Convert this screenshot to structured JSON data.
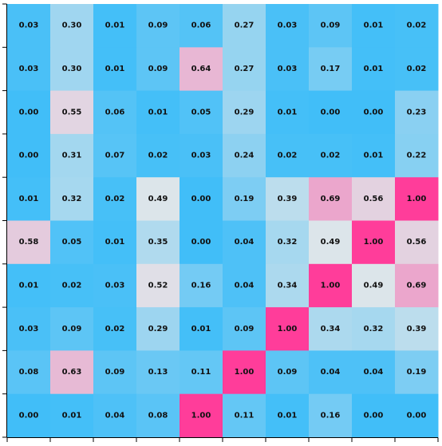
{
  "chart_data": {
    "type": "heatmap",
    "title": "",
    "xlabel": "",
    "ylabel": "",
    "rows": 10,
    "cols": 10,
    "value_range": [
      0,
      1
    ],
    "colormap": {
      "low": "#41bef8",
      "mid": "#dfe6ea",
      "high": "#ff3d9a"
    },
    "values": [
      [
        0.03,
        0.3,
        0.01,
        0.09,
        0.06,
        0.27,
        0.03,
        0.09,
        0.01,
        0.02
      ],
      [
        0.03,
        0.3,
        0.01,
        0.09,
        0.64,
        0.27,
        0.03,
        0.17,
        0.01,
        0.02
      ],
      [
        0.0,
        0.55,
        0.06,
        0.01,
        0.05,
        0.29,
        0.01,
        0.0,
        0.0,
        0.23
      ],
      [
        0.0,
        0.31,
        0.07,
        0.02,
        0.03,
        0.24,
        0.02,
        0.02,
        0.01,
        0.22
      ],
      [
        0.01,
        0.32,
        0.02,
        0.49,
        0.0,
        0.19,
        0.39,
        0.69,
        0.56,
        1.0
      ],
      [
        0.58,
        0.05,
        0.01,
        0.35,
        0.0,
        0.04,
        0.32,
        0.49,
        1.0,
        0.56
      ],
      [
        0.01,
        0.02,
        0.03,
        0.52,
        0.16,
        0.04,
        0.34,
        1.0,
        0.49,
        0.69
      ],
      [
        0.03,
        0.09,
        0.02,
        0.29,
        0.01,
        0.09,
        1.0,
        0.34,
        0.32,
        0.39
      ],
      [
        0.08,
        0.63,
        0.09,
        0.13,
        0.11,
        1.0,
        0.09,
        0.04,
        0.04,
        0.19
      ],
      [
        0.0,
        0.01,
        0.04,
        0.08,
        1.0,
        0.11,
        0.01,
        0.16,
        0.0,
        0.0
      ]
    ],
    "x_tick_labels": [],
    "y_tick_labels": [],
    "legend": "none",
    "grid": false
  }
}
